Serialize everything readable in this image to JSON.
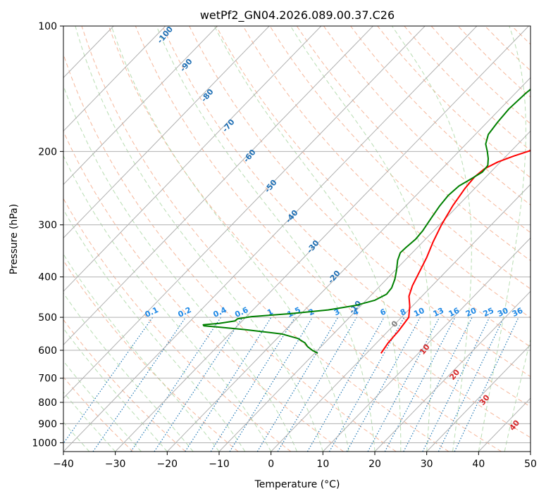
{
  "chart_data": {
    "type": "skew-t",
    "title": "wetPf2_GN04.2026.089.00.37.C26",
    "xlabel": "Temperature (°C)",
    "ylabel": "Pressure (hPa)",
    "xlim": [
      -40,
      50
    ],
    "ylim": [
      1050,
      100
    ],
    "x_ticks": [
      "−40",
      "−30",
      "−20",
      "−10",
      "0",
      "10",
      "20",
      "30",
      "40",
      "50"
    ],
    "x_tick_values": [
      -40,
      -30,
      -20,
      -10,
      0,
      10,
      20,
      30,
      40,
      50
    ],
    "y_ticks": [
      "100",
      "200",
      "300",
      "400",
      "500",
      "600",
      "700",
      "800",
      "900",
      "1000"
    ],
    "y_tick_values": [
      100,
      200,
      300,
      400,
      500,
      600,
      700,
      800,
      900,
      1000
    ],
    "grid": true,
    "series": [
      {
        "name": "Temperature",
        "color": "#ff0000",
        "points": [
          [
            610,
            2.8
          ],
          [
            575,
            2.2
          ],
          [
            540,
            2.0
          ],
          [
            500,
            1.4
          ],
          [
            470,
            -0.5
          ],
          [
            445,
            -2.5
          ],
          [
            420,
            -3.8
          ],
          [
            390,
            -5.0
          ],
          [
            360,
            -6.3
          ],
          [
            330,
            -8.0
          ],
          [
            300,
            -9.6
          ],
          [
            270,
            -11.0
          ],
          [
            245,
            -11.9
          ],
          [
            230,
            -12.2
          ],
          [
            220,
            -11.8
          ],
          [
            212,
            -10.5
          ],
          [
            205,
            -8.5
          ],
          [
            198,
            -6.0
          ],
          [
            190,
            -2.0
          ],
          [
            178,
            1.5
          ],
          [
            168,
            5.0
          ],
          [
            155,
            8.0
          ],
          [
            143,
            11.5
          ],
          [
            132,
            14.5
          ],
          [
            122,
            17.5
          ],
          [
            113,
            20.0
          ],
          [
            106,
            22.5
          ],
          [
            100,
            24.0
          ]
        ]
      },
      {
        "name": "Dewpoint",
        "color": "#008000",
        "points": [
          [
            610,
            -9.4
          ],
          [
            600,
            -11.0
          ],
          [
            588,
            -12.6
          ],
          [
            576,
            -13.8
          ],
          [
            562,
            -16.0
          ],
          [
            548,
            -20.0
          ],
          [
            535,
            -28.0
          ],
          [
            527,
            -34.0
          ],
          [
            524,
            -36.5
          ],
          [
            521,
            -36.8
          ],
          [
            517,
            -34.0
          ],
          [
            513,
            -32.5
          ],
          [
            510,
            -31.4
          ],
          [
            504,
            -31.3
          ],
          [
            498,
            -29.0
          ],
          [
            490,
            -22.0
          ],
          [
            480,
            -15.5
          ],
          [
            468,
            -11.0
          ],
          [
            455,
            -8.3
          ],
          [
            440,
            -7.2
          ],
          [
            425,
            -7.4
          ],
          [
            405,
            -8.4
          ],
          [
            385,
            -9.8
          ],
          [
            365,
            -11.4
          ],
          [
            350,
            -12.3
          ],
          [
            340,
            -12.2
          ],
          [
            325,
            -11.9
          ],
          [
            310,
            -12.1
          ],
          [
            290,
            -12.8
          ],
          [
            270,
            -13.5
          ],
          [
            255,
            -13.8
          ],
          [
            242,
            -13.5
          ],
          [
            232,
            -12.4
          ],
          [
            224,
            -11.6
          ],
          [
            216,
            -11.8
          ],
          [
            208,
            -13.0
          ],
          [
            200,
            -14.5
          ],
          [
            192,
            -16.2
          ],
          [
            182,
            -17.5
          ],
          [
            170,
            -18.0
          ],
          [
            158,
            -18.3
          ],
          [
            145,
            -18.0
          ],
          [
            130,
            -17.0
          ],
          [
            118,
            -15.6
          ],
          [
            108,
            -13.8
          ],
          [
            100,
            -12.0
          ]
        ]
      }
    ],
    "mixing_ratio_labels": [
      "0.1",
      "0.2",
      "0.4",
      "0.6",
      "1",
      "1.5",
      "2",
      "3",
      "4",
      "6",
      "8",
      "10",
      "13",
      "16",
      "20",
      "25",
      "30",
      "36"
    ],
    "dry_adiabat_labels": [
      "-100",
      "-90",
      "-80",
      "-70",
      "-60",
      "-50",
      "-40",
      "-30",
      "-20",
      "-10",
      "0",
      "10",
      "20",
      "30",
      "40"
    ],
    "colors": {
      "isotherm": "#b0b0b0",
      "isobar": "#b0b0b0",
      "dry_adiabat": "#f4a582",
      "moist_adiabat": "#a6d49f",
      "mixing_ratio": "#1f77b4",
      "dry_label": "#1f6fb4",
      "mixing_label": "#1e88e5",
      "warm_label": "#d62728",
      "zero_label": "#7f7f7f"
    }
  }
}
